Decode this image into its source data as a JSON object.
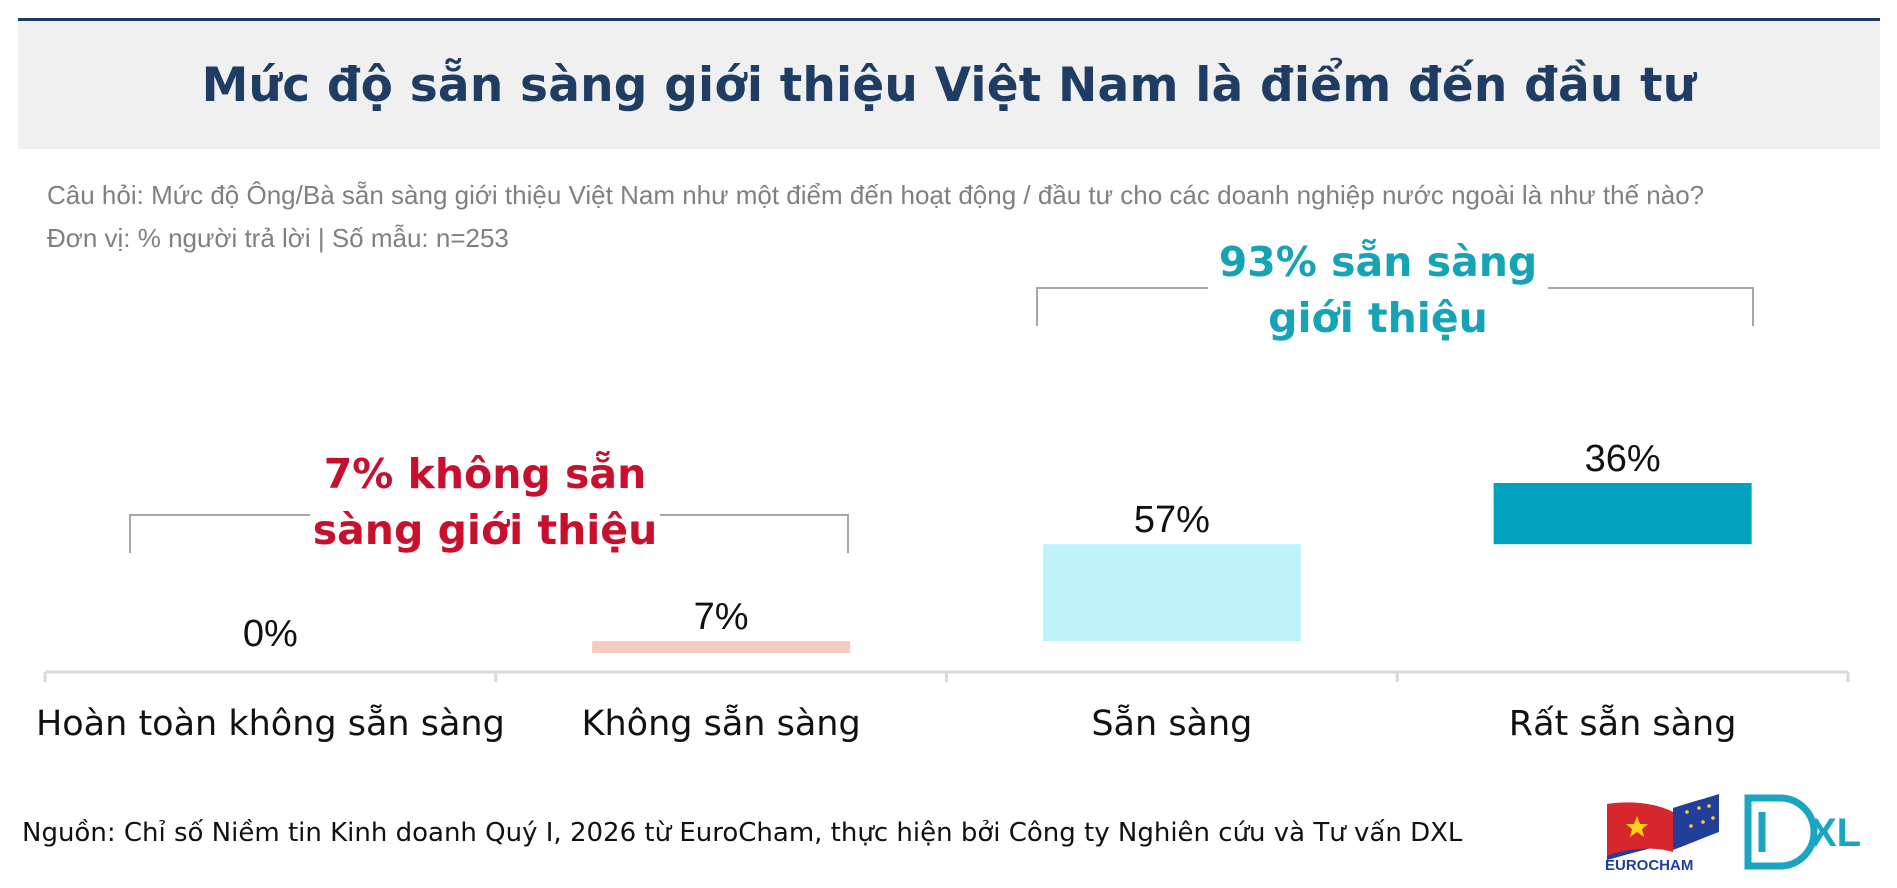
{
  "header": {
    "title": "Mức độ sẵn sàng giới thiệu Việt Nam là điểm đến đầu tư"
  },
  "subtitle": {
    "question": "Câu hỏi: Mức độ Ông/Bà sẵn sàng giới thiệu Việt Nam như một điểm đến hoạt động / đầu tư cho các doanh nghiệp nước ngoài là như thế nào?",
    "unit": "Đơn vị: % người trả lời | Số mẫu: n=253"
  },
  "chart_data": {
    "type": "bar",
    "categories": [
      "Hoàn toàn không sẵn sàng",
      "Không sẵn sàng",
      "Sẵn sàng",
      "Rất sẵn sàng"
    ],
    "values": [
      0,
      7,
      57,
      36
    ],
    "value_labels": [
      "0%",
      "7%",
      "57%",
      "36%"
    ],
    "layout_style": "waterfall",
    "bar_colors": [
      "#f8cbc2",
      "#f8cbc2",
      "#bff3fb",
      "#00a2bf"
    ],
    "grid": false,
    "annotations": [
      {
        "text_lines": [
          "7% không sẵn",
          "sàng giới thiệu"
        ],
        "color": "#c8102e",
        "spans": [
          "Hoàn toàn không sẵn sàng",
          "Không sẵn sàng"
        ]
      },
      {
        "text_lines": [
          "93% sẵn sàng",
          "giới thiệu"
        ],
        "color": "#16a3b5",
        "spans": [
          "Sẵn sàng",
          "Rất sẵn sàng"
        ]
      }
    ]
  },
  "source": {
    "text": "Nguồn: Chỉ số Niềm tin Kinh doanh Quý I, 2026 từ EuroCham, thực hiện bởi Công ty Nghiên cứu và Tư vấn DXL"
  },
  "logos": {
    "eurocham_text": "EUROCHAM",
    "dxl_text": "XL"
  },
  "colors": {
    "title": "#1f3d63",
    "negative": "#c8102e",
    "positive": "#16a3b5"
  }
}
